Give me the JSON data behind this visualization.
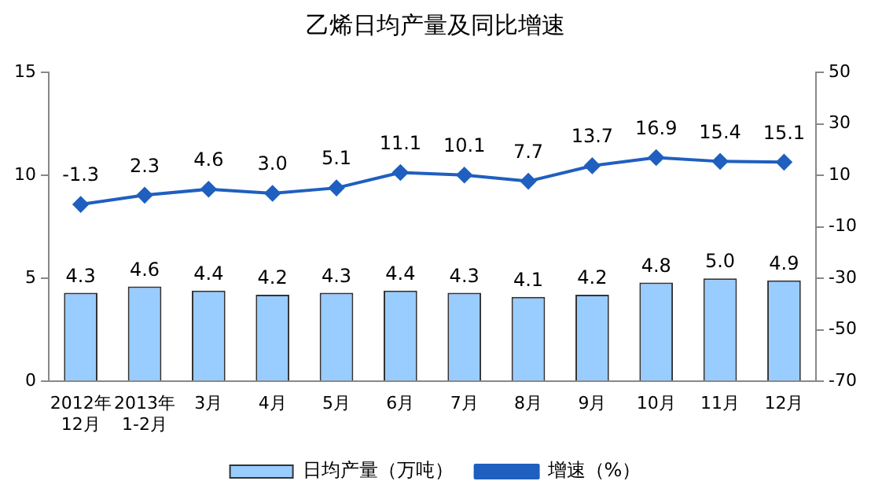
{
  "chart_data": {
    "type": "bar",
    "title": "乙烯日均产量及同比增速",
    "categories": [
      "2012年\n12月",
      "2013年\n1-2月",
      "3月",
      "4月",
      "5月",
      "6月",
      "7月",
      "8月",
      "9月",
      "10月",
      "11月",
      "12月"
    ],
    "series": [
      {
        "name": "日均产量（万吨）",
        "color": "#99ccff",
        "values": [
          4.3,
          4.6,
          4.4,
          4.2,
          4.3,
          4.4,
          4.3,
          4.1,
          4.2,
          4.8,
          5.0,
          4.9
        ],
        "value_labels": [
          "4.3",
          "4.6",
          "4.4",
          "4.2",
          "4.3",
          "4.4",
          "4.3",
          "4.1",
          "4.2",
          "4.8",
          "5.0",
          "4.9"
        ]
      },
      {
        "name": "增速（%）",
        "type": "line",
        "axis": "y2",
        "color": "#1f5fbf",
        "marker": "diamond",
        "values": [
          -1.3,
          2.3,
          4.6,
          3.0,
          5.1,
          11.1,
          10.1,
          7.7,
          13.7,
          16.9,
          15.4,
          15.1
        ],
        "value_labels": [
          "-1.3",
          "2.3",
          "4.6",
          "3.0",
          "5.1",
          "11.1",
          "10.1",
          "7.7",
          "13.7",
          "16.9",
          "15.4",
          "15.1"
        ]
      }
    ],
    "ylim": [
      0,
      15
    ],
    "yticks": [
      0,
      5,
      10,
      15
    ],
    "y2lim": [
      -70,
      50
    ],
    "y2ticks": [
      -70,
      -50,
      -30,
      -10,
      10,
      30,
      50
    ],
    "grid": false,
    "legend": "bottom"
  }
}
